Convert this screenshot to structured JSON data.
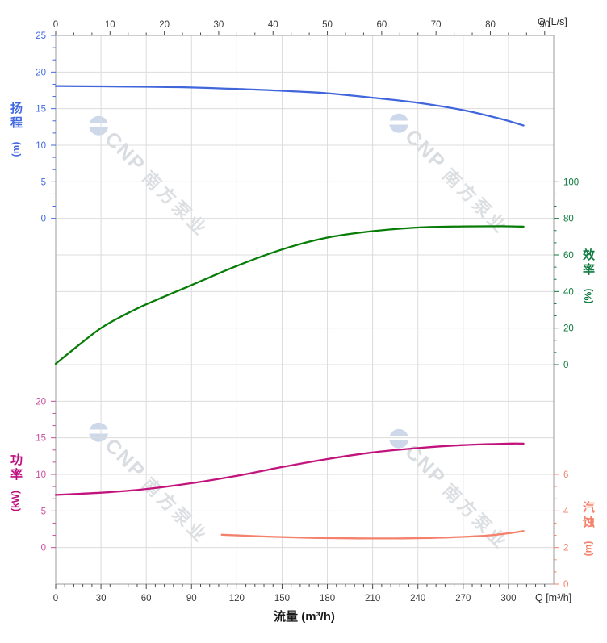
{
  "watermark": {
    "text_cnp": "CNP",
    "text_cn": "南方泵业"
  },
  "labels": {
    "top_corner": "Q [L/s]",
    "bottom_corner": "Q [m³/h]",
    "flow_title": "流量 (m³/h)"
  },
  "colors": {
    "head": "#4166db",
    "head_text": "#4169e1",
    "eff": "#077d07",
    "eff_text": "#0e7a3e",
    "power": "#c2127c",
    "power_text": "#c74f9f",
    "power_title": "#bd0d7e",
    "npsh": "#f4816c",
    "npsh_text": "#f4816c",
    "grid": "#dcdcdc",
    "border": "#acacac",
    "xtick_text": "#3a3a3a"
  },
  "chart_data": {
    "type": "line",
    "title": "",
    "x_unit_bottom": "m³/h",
    "x_unit_top": "L/s",
    "grid": true,
    "axes": {
      "top_x": {
        "label": "Q [L/s]",
        "min": 0,
        "max": 91.7,
        "major_step": 10,
        "minor_divisions": 3
      },
      "bottom_x": {
        "title": "流量 (m³/h)",
        "corner_label": "Q [m³/h]",
        "min": 0,
        "max": 330,
        "major_step": 30,
        "minor_divisions": 5
      },
      "head": {
        "title": "扬程",
        "unit": "(m)",
        "min": 0,
        "max": 25,
        "major_step": 5,
        "minor_divisions": 3,
        "side": "left"
      },
      "eff": {
        "title": "效率",
        "unit": "(%)",
        "min": 0,
        "max": 100,
        "major_step": 20,
        "minor_divisions": 3,
        "side": "right"
      },
      "power": {
        "title": "功率",
        "unit": "(kW)",
        "min": 0,
        "max": 20,
        "major_step": 5,
        "minor_divisions": 3,
        "side": "left"
      },
      "npsh": {
        "title": "汽蚀",
        "unit": "(m)",
        "min": 0,
        "max": 6,
        "major_step": 2,
        "minor_divisions": 3,
        "side": "right"
      }
    },
    "series": [
      {
        "name": "head",
        "label": "扬程",
        "axis": "head",
        "unit": "m",
        "points": [
          [
            0,
            18.1
          ],
          [
            30,
            18.05
          ],
          [
            60,
            18.0
          ],
          [
            90,
            17.9
          ],
          [
            120,
            17.7
          ],
          [
            150,
            17.45
          ],
          [
            180,
            17.1
          ],
          [
            210,
            16.5
          ],
          [
            240,
            15.8
          ],
          [
            270,
            14.8
          ],
          [
            295,
            13.6
          ],
          [
            310,
            12.7
          ]
        ]
      },
      {
        "name": "efficiency",
        "label": "效率",
        "axis": "eff",
        "unit": "%",
        "points": [
          [
            0,
            0.5
          ],
          [
            15,
            10.5
          ],
          [
            30,
            20
          ],
          [
            45,
            27
          ],
          [
            60,
            33
          ],
          [
            90,
            43.5
          ],
          [
            120,
            54
          ],
          [
            150,
            63
          ],
          [
            180,
            69.5
          ],
          [
            210,
            73
          ],
          [
            240,
            75
          ],
          [
            270,
            75.6
          ],
          [
            295,
            75.7
          ],
          [
            310,
            75.5
          ]
        ]
      },
      {
        "name": "power",
        "label": "功率",
        "axis": "power",
        "unit": "kW",
        "points": [
          [
            0,
            7.2
          ],
          [
            30,
            7.5
          ],
          [
            60,
            8.0
          ],
          [
            90,
            8.8
          ],
          [
            120,
            9.8
          ],
          [
            150,
            11.0
          ],
          [
            180,
            12.1
          ],
          [
            210,
            13.0
          ],
          [
            240,
            13.6
          ],
          [
            270,
            14.0
          ],
          [
            300,
            14.2
          ],
          [
            310,
            14.2
          ]
        ]
      },
      {
        "name": "npsh",
        "label": "汽蚀",
        "axis": "npsh",
        "unit": "m",
        "points": [
          [
            110,
            2.7
          ],
          [
            140,
            2.6
          ],
          [
            170,
            2.53
          ],
          [
            200,
            2.5
          ],
          [
            230,
            2.5
          ],
          [
            260,
            2.55
          ],
          [
            285,
            2.65
          ],
          [
            300,
            2.78
          ],
          [
            310,
            2.9
          ]
        ]
      }
    ]
  }
}
